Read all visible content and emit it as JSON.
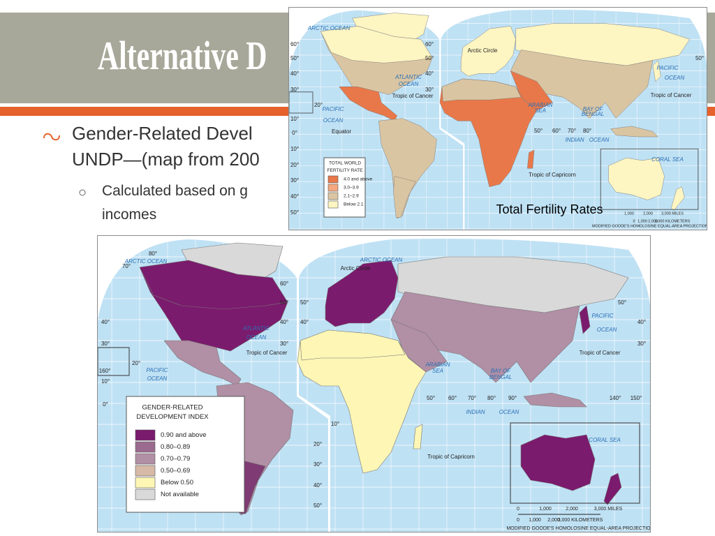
{
  "slide": {
    "title": "Alternative D",
    "bullets": [
      "Gender-Related Devel",
      "UNDP—(map from 200"
    ],
    "sub_bullets": [
      "Calculated based on g",
      "incomes"
    ]
  },
  "fertility_map": {
    "caption": "Total Fertility Rates",
    "legend_title": [
      "TOTAL WORLD",
      "FERTILITY RATE"
    ],
    "legend": [
      {
        "label": "4.0 and above",
        "color": "#e8784a"
      },
      {
        "label": "3.0–3.9",
        "color": "#f5a77f"
      },
      {
        "label": "2.1–2.9",
        "color": "#dac5a2"
      },
      {
        "label": "Below 2.1",
        "color": "#fdf5c2"
      }
    ],
    "labels": [
      "ARCTIC OCEAN",
      "Arctic Circle",
      "ATLANTIC",
      "OCEAN",
      "Tropic of Cancer",
      "PACIFIC",
      "OCEAN",
      "Equator",
      "PACIFIC",
      "OCEAN",
      "Tropic of Cancer",
      "ARABIAN",
      "SEA",
      "BAY OF",
      "BENGAL",
      "INDIAN",
      "OCEAN",
      "Tropic of Capricorn",
      "CORAL SEA",
      "60°",
      "50°",
      "40°",
      "30°",
      "20°",
      "10°",
      "0°",
      "10°",
      "20°",
      "30°",
      "40°",
      "50°",
      "60°",
      "50°",
      "40°",
      "30°",
      "50°",
      "60°",
      "70°",
      "80°",
      "50°"
    ],
    "scale_miles": [
      "1,000",
      "2,000",
      "3,000 MILES"
    ],
    "scale_km": [
      "0",
      "1,000",
      "2,000",
      "3,000 KILOMETERS"
    ],
    "projection": "MODIFIED GOODE'S HOMOLOSINE EQUAL-AREA PROJECTION"
  },
  "gdi_map": {
    "legend_title": [
      "GENDER-RELATED",
      "DEVELOPMENT INDEX"
    ],
    "legend": [
      {
        "label": "0.90 and above",
        "color": "#7b1b6d"
      },
      {
        "label": "0.80–0.89",
        "color": "#9b6b8f"
      },
      {
        "label": "0.70–0.79",
        "color": "#b18fa5"
      },
      {
        "label": "0.50–0.69",
        "color": "#d6b9a6"
      },
      {
        "label": "Below 0.50",
        "color": "#fdf6b5"
      },
      {
        "label": "Not available",
        "color": "#d9d9d9"
      }
    ],
    "labels": [
      "ARCTIC OCEAN",
      "ARCTIC OCEAN",
      "Arctic Circle",
      "ATLANTIC",
      "OCEAN",
      "Tropic of Cancer",
      "PACIFIC",
      "OCEAN",
      "PACIFIC",
      "OCEAN",
      "Tropic of Cancer",
      "ARABIAN",
      "SEA",
      "BAY OF",
      "BENGAL",
      "INDIAN",
      "OCEAN",
      "Tropic of Capricorn",
      "CORAL SEA",
      "80°",
      "70°",
      "60°",
      "50°",
      "40°",
      "40°",
      "30°",
      "30°",
      "20°",
      "10°",
      "0°",
      "50°",
      "40°",
      "50°",
      "40°",
      "30°",
      "50°",
      "60°",
      "70°",
      "80°",
      "90°",
      "140°",
      "150°",
      "10°",
      "20°",
      "30°",
      "40°",
      "50°",
      "160°"
    ],
    "scale_miles": [
      "0",
      "1,000",
      "2,000",
      "3,000 MILES"
    ],
    "scale_km": [
      "0",
      "1,000",
      "2,000",
      "3,000 KILOMETERS"
    ],
    "projection": "MODIFIED GOODE'S HOMOLOSINE EQUAL-AREA PROJECTION"
  }
}
